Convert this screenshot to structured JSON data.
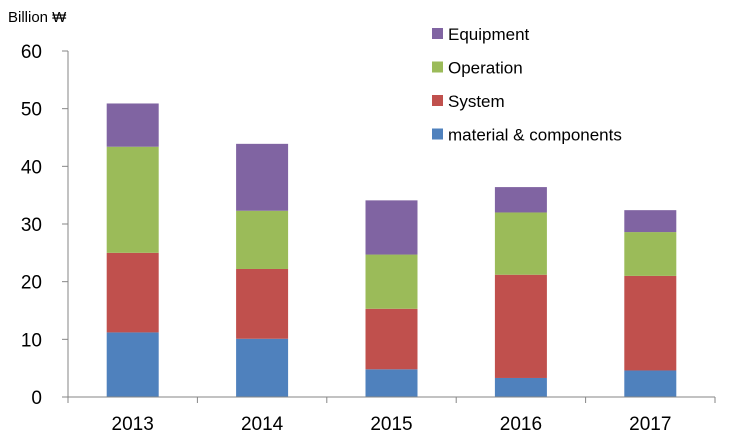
{
  "chart_data": {
    "type": "bar",
    "stacked": true,
    "title": "",
    "ylabel": "Billion ₩",
    "xlabel": "",
    "ylim": [
      0,
      60
    ],
    "yticks": [
      0,
      10,
      20,
      30,
      40,
      50,
      60
    ],
    "categories": [
      "2013",
      "2014",
      "2015",
      "2016",
      "2017"
    ],
    "series": [
      {
        "name": "material & components",
        "color": "#4F81BD",
        "values": [
          11.2,
          10.1,
          4.8,
          3.3,
          4.6
        ]
      },
      {
        "name": "System",
        "color": "#C0504D",
        "values": [
          13.8,
          12.1,
          10.5,
          17.9,
          16.4
        ]
      },
      {
        "name": "Operation",
        "color": "#9BBB59",
        "values": [
          18.4,
          10.1,
          9.4,
          10.8,
          7.6
        ]
      },
      {
        "name": "Equipment",
        "color": "#8064A2",
        "values": [
          7.5,
          11.6,
          9.4,
          4.4,
          3.8
        ]
      }
    ],
    "legend_position": "top-right",
    "legend_order": [
      "Equipment",
      "Operation",
      "System",
      "material & components"
    ],
    "grid": false
  }
}
